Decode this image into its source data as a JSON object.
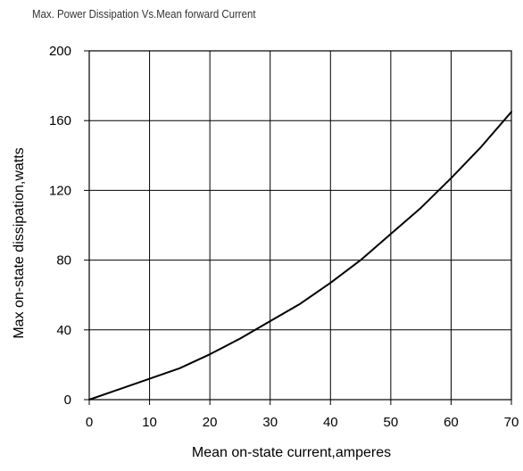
{
  "chart_data": {
    "type": "line",
    "title": "Max. Power Dissipation Vs.Mean forward Current",
    "xlabel": "Mean on-state current,amperes",
    "ylabel": "Max on-state dissipation,watts",
    "xlim": [
      0,
      70
    ],
    "ylim": [
      0,
      200
    ],
    "xticks": [
      0,
      10,
      20,
      30,
      40,
      50,
      60,
      70
    ],
    "yticks": [
      0,
      40,
      80,
      120,
      160,
      200
    ],
    "grid": true,
    "legend": "none",
    "series": [
      {
        "color": "#000000",
        "x": [
          0,
          5,
          10,
          15,
          20,
          25,
          30,
          35,
          40,
          45,
          50,
          55,
          60,
          65,
          70
        ],
        "y": [
          0,
          6,
          12,
          18,
          26,
          35,
          45,
          55,
          67,
          80,
          95,
          110,
          127,
          145,
          165
        ]
      }
    ]
  }
}
